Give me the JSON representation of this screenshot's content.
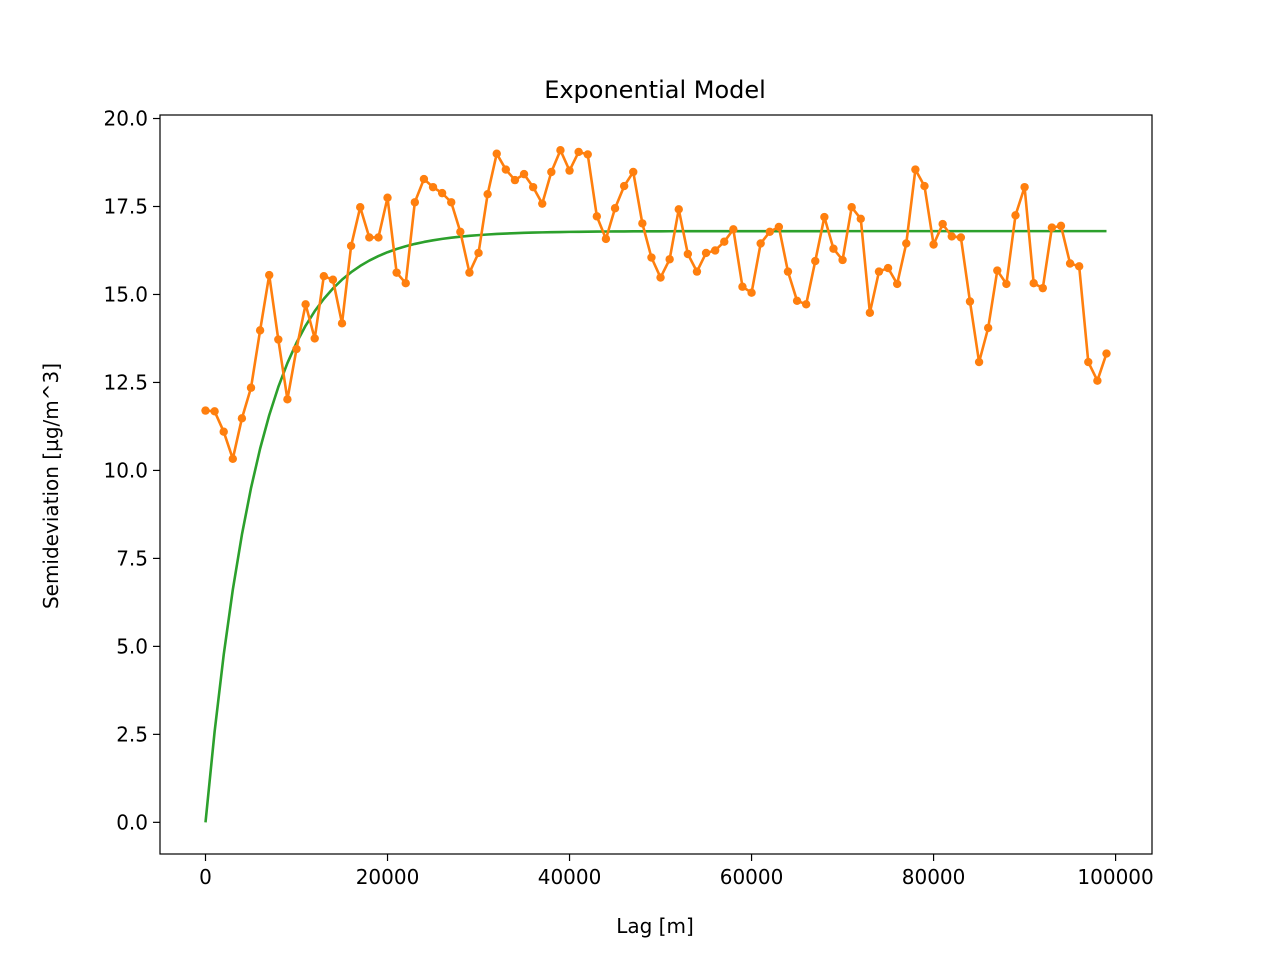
{
  "chart_data": {
    "type": "line",
    "title": "Exponential Model",
    "xlabel": "Lag [m]",
    "ylabel": "Semideviation [µg/m^3]",
    "xlim": [
      -5000,
      104000
    ],
    "ylim": [
      -0.9,
      20.1
    ],
    "xticks": [
      0,
      20000,
      40000,
      60000,
      80000,
      100000
    ],
    "yticks": [
      0.0,
      2.5,
      5.0,
      7.5,
      10.0,
      12.5,
      15.0,
      17.5,
      20.0
    ],
    "xtick_labels": [
      "0",
      "20000",
      "40000",
      "60000",
      "80000",
      "100000"
    ],
    "ytick_labels": [
      "0.0",
      "2.5",
      "5.0",
      "7.5",
      "10.0",
      "12.5",
      "15.0",
      "17.5",
      "20.0"
    ],
    "grid": false,
    "legend": "none",
    "series": [
      {
        "kind": "empirical",
        "color": "#ff7f0e",
        "marker": "circle",
        "x": [
          0,
          1000,
          2000,
          3000,
          4000,
          5000,
          6000,
          7000,
          8000,
          9000,
          10000,
          11000,
          12000,
          13000,
          14000,
          15000,
          16000,
          17000,
          18000,
          19000,
          20000,
          21000,
          22000,
          23000,
          24000,
          25000,
          26000,
          27000,
          28000,
          29000,
          30000,
          31000,
          32000,
          33000,
          34000,
          35000,
          36000,
          37000,
          38000,
          39000,
          40000,
          41000,
          42000,
          43000,
          44000,
          45000,
          46000,
          47000,
          48000,
          49000,
          50000,
          51000,
          52000,
          53000,
          54000,
          55000,
          56000,
          57000,
          58000,
          59000,
          60000,
          61000,
          62000,
          63000,
          64000,
          65000,
          66000,
          67000,
          68000,
          69000,
          70000,
          71000,
          72000,
          73000,
          74000,
          75000,
          76000,
          77000,
          78000,
          79000,
          80000,
          81000,
          82000,
          83000,
          84000,
          85000,
          86000,
          87000,
          88000,
          89000,
          90000,
          91000,
          92000,
          93000,
          94000,
          95000,
          96000,
          97000,
          98000,
          99000
        ],
        "values": [
          11.7,
          11.68,
          11.1,
          10.33,
          11.48,
          12.35,
          13.98,
          15.55,
          13.72,
          12.02,
          13.45,
          14.72,
          13.75,
          15.52,
          15.42,
          14.18,
          16.38,
          17.48,
          16.62,
          16.62,
          17.75,
          15.62,
          15.32,
          17.62,
          18.28,
          18.05,
          17.88,
          17.62,
          16.78,
          15.62,
          16.18,
          17.85,
          19.0,
          18.55,
          18.25,
          18.42,
          18.05,
          17.58,
          18.48,
          19.1,
          18.52,
          19.05,
          18.98,
          17.22,
          16.58,
          17.45,
          18.08,
          18.48,
          17.02,
          16.05,
          15.48,
          16.0,
          17.42,
          16.15,
          15.65,
          16.18,
          16.25,
          16.5,
          16.85,
          15.22,
          15.05,
          16.45,
          16.78,
          16.92,
          15.65,
          14.82,
          14.72,
          15.95,
          17.2,
          16.3,
          15.98,
          17.48,
          17.15,
          14.48,
          15.65,
          15.75,
          15.3,
          16.45,
          18.55,
          18.08,
          16.42,
          17.0,
          16.65,
          16.62,
          14.8,
          13.08,
          14.05,
          15.68,
          15.3,
          17.25,
          18.05,
          15.32,
          15.18,
          16.9,
          16.95,
          15.88,
          15.8,
          13.08,
          12.55,
          13.32
        ]
      },
      {
        "kind": "model",
        "color": "#2ca02c",
        "marker": "none",
        "nugget": 0,
        "sill": 16.8,
        "range": 6000,
        "x_start": 0,
        "x_end": 99000,
        "x_step": 1000
      }
    ]
  }
}
